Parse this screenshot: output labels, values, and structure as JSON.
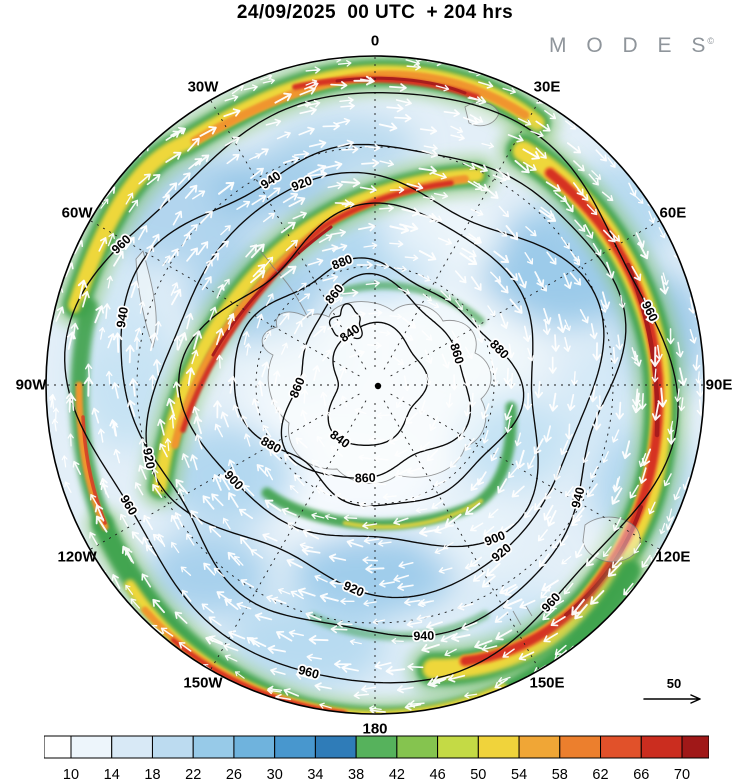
{
  "header": {
    "title": "24/09/2025  00 UTC  + 204 hrs",
    "logo": "M O D E S",
    "logo_mark": "©"
  },
  "chart_data": {
    "type": "heatmap",
    "title": "24/09/2025 00 UTC + 204 hrs",
    "layout": "south polar circular map; shaded wind speed, black height contours, white wind arrows, horizontal colorbar below",
    "longitude_labels": [
      {
        "label": "0",
        "angle_deg": 0
      },
      {
        "label": "30E",
        "angle_deg": 30
      },
      {
        "label": "60E",
        "angle_deg": 60
      },
      {
        "label": "90E",
        "angle_deg": 90
      },
      {
        "label": "120E",
        "angle_deg": 120
      },
      {
        "label": "150E",
        "angle_deg": 150
      },
      {
        "label": "180",
        "angle_deg": 180
      },
      {
        "label": "150W",
        "angle_deg": 210
      },
      {
        "label": "120W",
        "angle_deg": 240
      },
      {
        "label": "90W",
        "angle_deg": 270
      },
      {
        "label": "60W",
        "angle_deg": 300
      },
      {
        "label": "30W",
        "angle_deg": 330
      }
    ],
    "contours": {
      "levels": [
        "840",
        "860",
        "880",
        "900",
        "920",
        "940",
        "960"
      ],
      "label_placements": [
        {
          "value": "840",
          "angles_deg": [
            334,
            213
          ]
        },
        {
          "value": "860",
          "angles_deg": [
            69,
            186,
            268,
            336
          ]
        },
        {
          "value": "880",
          "angles_deg": [
            74,
            240,
            345
          ]
        },
        {
          "value": "900",
          "angles_deg": [
            142,
            236
          ]
        },
        {
          "value": "920",
          "angles_deg": [
            340,
            143,
            186,
            252
          ]
        },
        {
          "value": "940",
          "angles_deg": [
            333,
            119,
            169,
            285
          ]
        },
        {
          "value": "960",
          "angles_deg": [
            75,
            141,
            193,
            244,
            299
          ]
        }
      ]
    },
    "colorbar": {
      "orientation": "horizontal",
      "tick_labels": [
        "10",
        "14",
        "18",
        "22",
        "26",
        "30",
        "34",
        "38",
        "42",
        "46",
        "50",
        "54",
        "58",
        "62",
        "66",
        "70"
      ],
      "cell_colors": [
        "#ffffff",
        "#edf5fb",
        "#d8e9f6",
        "#bcdbf0",
        "#97cae8",
        "#6fb3dd",
        "#4897ce",
        "#2f7cb8",
        "#56b25c",
        "#85c44f",
        "#c4da45",
        "#f0d33b",
        "#f0a636",
        "#ec7f2d",
        "#e1512a",
        "#cb2d1f",
        "#a01818"
      ]
    },
    "wind_scale": {
      "label": "50"
    },
    "accent_colors": {
      "jet_red": "#d63324",
      "jet_orange": "#f0952f",
      "jet_yellow": "#eed73b",
      "jet_green": "#3da14b",
      "ocean_blue": "#9ccbea"
    }
  }
}
